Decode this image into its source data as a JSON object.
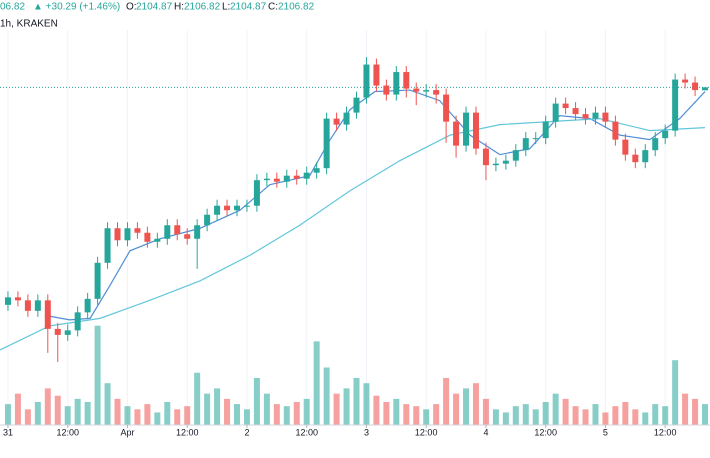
{
  "header": {
    "price": "06.82",
    "change": "▲ +30.29 (+1.46%)",
    "o_label": "O:",
    "o": "2104.87",
    "h_label": "H:",
    "h": "2106.82",
    "l_label": "L:",
    "l": "2104.87",
    "c_label": "C:",
    "c": "2106.82",
    "interval": "1h, KRAKEN"
  },
  "chart_data": {
    "type": "candlestick",
    "x": [
      0,
      2,
      4,
      6,
      8,
      10,
      12,
      14,
      16,
      18,
      20,
      22,
      24,
      26,
      28,
      30,
      32,
      34,
      36,
      38,
      40,
      42,
      44,
      46,
      48,
      50,
      52,
      54,
      56,
      58,
      60,
      62,
      64,
      66,
      68,
      70,
      72,
      74,
      76,
      78,
      80,
      82,
      84,
      86,
      88,
      90,
      92,
      94,
      96,
      98,
      100,
      102,
      104,
      106,
      108,
      110,
      112,
      114,
      116,
      118,
      120,
      122,
      124,
      126,
      128,
      130,
      132,
      134,
      136,
      138,
      140
    ],
    "open": [
      1962,
      1967,
      1965,
      1958,
      1965,
      1946,
      1942,
      1945,
      1957,
      1966,
      1990,
      2013,
      2005,
      2013,
      2010,
      2004,
      2006,
      2015,
      2009,
      2006,
      2015,
      2022,
      2028,
      2025,
      2028,
      2028,
      2045,
      2046,
      2044,
      2048,
      2046,
      2050,
      2053,
      2086,
      2082,
      2090,
      2100,
      2122,
      2108,
      2102,
      2117,
      2106,
      2104,
      2105,
      2102,
      2084,
      2068,
      2090,
      2066,
      2055,
      2056,
      2058,
      2065,
      2073,
      2073,
      2084,
      2096,
      2093,
      2089,
      2086,
      2090,
      2084,
      2072,
      2062,
      2057,
      2065,
      2073,
      2078,
      2112,
      2110,
      2104.87
    ],
    "high": [
      1971,
      1971,
      1969,
      1969,
      1969,
      1950,
      1949,
      1961,
      1970,
      1994,
      2017,
      2017,
      2017,
      2017,
      2014,
      2010,
      2019,
      2019,
      2013,
      2019,
      2026,
      2032,
      2032,
      2032,
      2032,
      2049,
      2050,
      2050,
      2052,
      2052,
      2054,
      2057,
      2090,
      2090,
      2094,
      2104,
      2127,
      2126,
      2112,
      2121,
      2121,
      2110,
      2109,
      2109,
      2106,
      2088,
      2094,
      2094,
      2070,
      2060,
      2062,
      2069,
      2077,
      2077,
      2088,
      2100,
      2100,
      2097,
      2093,
      2094,
      2094,
      2088,
      2076,
      2066,
      2069,
      2077,
      2082,
      2116,
      2116,
      2114,
      2106.82
    ],
    "low": [
      1958,
      1961,
      1954,
      1954,
      1930,
      1924,
      1938,
      1941,
      1953,
      1962,
      1986,
      2001,
      2001,
      2006,
      2000,
      2000,
      2002,
      2005,
      2002,
      1986,
      2011,
      2018,
      2021,
      2021,
      2024,
      2024,
      2041,
      2040,
      2040,
      2042,
      2042,
      2046,
      2049,
      2078,
      2078,
      2086,
      2096,
      2104,
      2098,
      2098,
      2100,
      2095,
      2100,
      2096,
      2070,
      2060,
      2064,
      2062,
      2045,
      2051,
      2052,
      2054,
      2061,
      2069,
      2069,
      2080,
      2089,
      2085,
      2082,
      2082,
      2080,
      2068,
      2058,
      2053,
      2053,
      2061,
      2069,
      2074,
      2106,
      2101,
      2104.87
    ],
    "close": [
      1967,
      1965,
      1958,
      1965,
      1946,
      1942,
      1945,
      1957,
      1966,
      1990,
      2013,
      2005,
      2013,
      2010,
      2004,
      2006,
      2015,
      2009,
      2006,
      2015,
      2022,
      2028,
      2025,
      2028,
      2028,
      2045,
      2046,
      2044,
      2048,
      2046,
      2050,
      2053,
      2086,
      2082,
      2090,
      2100,
      2122,
      2108,
      2102,
      2117,
      2106,
      2104,
      2105,
      2102,
      2084,
      2068,
      2090,
      2066,
      2055,
      2056,
      2058,
      2065,
      2073,
      2073,
      2084,
      2096,
      2093,
      2089,
      2086,
      2090,
      2084,
      2072,
      2062,
      2057,
      2065,
      2073,
      2078,
      2112,
      2110,
      2105,
      2106.82
    ],
    "volume": [
      20,
      30,
      15,
      22,
      35,
      28,
      18,
      25,
      22,
      95,
      40,
      25,
      18,
      15,
      20,
      12,
      22,
      15,
      18,
      50,
      30,
      35,
      25,
      20,
      15,
      45,
      30,
      20,
      18,
      22,
      25,
      80,
      55,
      30,
      35,
      45,
      40,
      28,
      22,
      25,
      20,
      18,
      15,
      20,
      45,
      30,
      35,
      40,
      25,
      15,
      12,
      18,
      20,
      15,
      22,
      30,
      25,
      18,
      15,
      20,
      12,
      18,
      22,
      15,
      12,
      20,
      18,
      62,
      30,
      25,
      20
    ],
    "up_color": "#26a69a",
    "down_color": "#ef5350",
    "lines": [
      {
        "color": "#4f8fd6",
        "x": [
          7.4,
          12.4,
          16.5,
          20.5,
          24.5,
          30.5,
          38.6,
          46.6,
          52.6,
          60.6,
          64.7,
          68.7,
          73.7,
          80.7,
          86.7,
          92.8,
          98.8,
          104.8,
          110.8,
          116.9,
          122.9,
          128.9,
          134.9,
          140
        ],
        "values": [
          1955,
          1952,
          1953,
          1975,
          1998,
          2006,
          2013,
          2025,
          2042,
          2048,
          2072,
          2092,
          2104,
          2105,
          2098,
          2075,
          2062,
          2066,
          2088,
          2086,
          2075,
          2072,
          2086,
          2104
        ]
      },
      {
        "color": "#62c6db",
        "x": [
          -1.6,
          8.4,
          18.5,
          28.5,
          38.6,
          48.6,
          58.6,
          68.7,
          78.7,
          88.8,
          98.8,
          108.8,
          118.9,
          128.9,
          140
        ],
        "values": [
          1932,
          1948,
          1953,
          1965,
          1978,
          1995,
          2015,
          2038,
          2058,
          2075,
          2082,
          2084,
          2086,
          2078,
          2080
        ]
      }
    ],
    "xlim": [
      -1.6,
      141
    ],
    "ylim": [
      1882,
      2145
    ],
    "volume_lim": [
      0,
      110
    ],
    "xticks": [
      {
        "value": 0,
        "label": "31"
      },
      {
        "value": 12,
        "label": "12:00"
      },
      {
        "value": 24,
        "label": "Apr"
      },
      {
        "value": 36,
        "label": "12:00"
      },
      {
        "value": 48,
        "label": "2"
      },
      {
        "value": 60,
        "label": "12:00"
      },
      {
        "value": 72,
        "label": "3"
      },
      {
        "value": 84,
        "label": "12:00"
      },
      {
        "value": 96,
        "label": "4"
      },
      {
        "value": 108,
        "label": "12:00"
      },
      {
        "value": 120,
        "label": "5"
      },
      {
        "value": 132,
        "label": "12:00"
      }
    ],
    "grid": true
  }
}
